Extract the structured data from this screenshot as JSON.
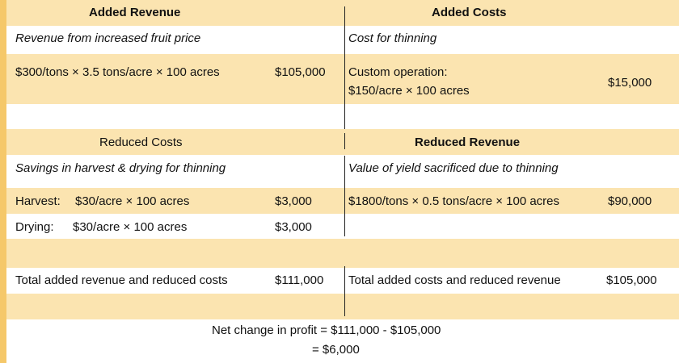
{
  "left": {
    "added_revenue_header": "Added Revenue",
    "revenue_desc": "Revenue from increased fruit price",
    "revenue_calc": "$300/tons × 3.5 tons/acre × 100 acres",
    "revenue_value": "$105,000",
    "reduced_costs_header": "Reduced Costs",
    "savings_desc": "Savings in harvest & drying for thinning",
    "harvest_label": "Harvest:",
    "harvest_calc": "$30/acre × 100 acres",
    "harvest_value": "$3,000",
    "drying_label": "Drying:",
    "drying_calc": "$30/acre × 100 acres",
    "drying_value": "$3,000",
    "total_label": "Total added revenue and reduced costs",
    "total_value": "$111,000"
  },
  "right": {
    "added_costs_header": "Added Costs",
    "cost_desc": "Cost for thinning",
    "custom_label": "Custom operation:",
    "custom_calc": "$150/acre × 100 acres",
    "custom_value": "$15,000",
    "reduced_revenue_header": "Reduced Revenue",
    "yield_desc": "Value of yield sacrificed due to thinning",
    "yield_calc": "$1800/tons × 0.5 tons/acre × 100 acres",
    "yield_value": "$90,000",
    "total_label": "Total added costs and reduced revenue",
    "total_value": "$105,000"
  },
  "summary": {
    "net_change_line": "Net change in profit = $111,000 - $105,000",
    "result_line": "=  $6,000"
  }
}
